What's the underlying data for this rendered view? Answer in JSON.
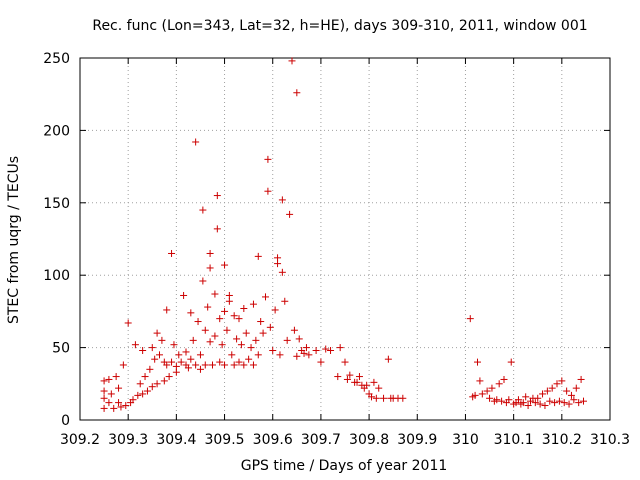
{
  "chart_data": {
    "type": "scatter",
    "title": "Rec. func (Lon=343, Lat=32, h=HE), days 309-310, 2011, window 001",
    "xlabel": "GPS time / Days of year 2011",
    "ylabel": "STEC from uqrg / TECUs",
    "xlim": [
      309.2,
      310.3
    ],
    "ylim": [
      0,
      250
    ],
    "xticks": [
      309.2,
      309.3,
      309.4,
      309.5,
      309.6,
      309.7,
      309.8,
      309.9,
      310,
      310.1,
      310.2,
      310.3
    ],
    "xtick_labels": [
      "309.2",
      "309.3",
      "309.4",
      "309.5",
      "309.6",
      "309.7",
      "309.8",
      "309.9",
      "310",
      "310.1",
      "310.2",
      "310.3"
    ],
    "yticks": [
      0,
      50,
      100,
      150,
      200,
      250
    ],
    "ytick_labels": [
      "0",
      "50",
      "100",
      "150",
      "200",
      "250"
    ],
    "grid": true,
    "marker": "+",
    "color": "#cc0000",
    "series": [
      {
        "name": "STEC",
        "points": [
          [
            309.25,
            27
          ],
          [
            309.25,
            20
          ],
          [
            309.25,
            15
          ],
          [
            309.25,
            8
          ],
          [
            309.26,
            28
          ],
          [
            309.26,
            12
          ],
          [
            309.265,
            18
          ],
          [
            309.27,
            8
          ],
          [
            309.275,
            30
          ],
          [
            309.28,
            22
          ],
          [
            309.28,
            12
          ],
          [
            309.285,
            9
          ],
          [
            309.29,
            38
          ],
          [
            309.295,
            10
          ],
          [
            309.3,
            67
          ],
          [
            309.305,
            12
          ],
          [
            309.31,
            14
          ],
          [
            309.315,
            52
          ],
          [
            309.32,
            17
          ],
          [
            309.325,
            25
          ],
          [
            309.33,
            48
          ],
          [
            309.33,
            18
          ],
          [
            309.335,
            30
          ],
          [
            309.34,
            20
          ],
          [
            309.345,
            35
          ],
          [
            309.35,
            50
          ],
          [
            309.35,
            23
          ],
          [
            309.355,
            42
          ],
          [
            309.36,
            60
          ],
          [
            309.36,
            25
          ],
          [
            309.365,
            45
          ],
          [
            309.37,
            55
          ],
          [
            309.375,
            40
          ],
          [
            309.375,
            27
          ],
          [
            309.38,
            76
          ],
          [
            309.38,
            38
          ],
          [
            309.385,
            30
          ],
          [
            309.39,
            115
          ],
          [
            309.39,
            40
          ],
          [
            309.395,
            52
          ],
          [
            309.4,
            37
          ],
          [
            309.4,
            33
          ],
          [
            309.405,
            45
          ],
          [
            309.41,
            40
          ],
          [
            309.415,
            86
          ],
          [
            309.42,
            38
          ],
          [
            309.42,
            47
          ],
          [
            309.425,
            36
          ],
          [
            309.43,
            74
          ],
          [
            309.43,
            42
          ],
          [
            309.435,
            55
          ],
          [
            309.44,
            192
          ],
          [
            309.44,
            38
          ],
          [
            309.445,
            68
          ],
          [
            309.45,
            35
          ],
          [
            309.45,
            45
          ],
          [
            309.455,
            145
          ],
          [
            309.455,
            96
          ],
          [
            309.46,
            62
          ],
          [
            309.46,
            38
          ],
          [
            309.465,
            78
          ],
          [
            309.47,
            115
          ],
          [
            309.47,
            105
          ],
          [
            309.47,
            54
          ],
          [
            309.475,
            38
          ],
          [
            309.48,
            87
          ],
          [
            309.48,
            58
          ],
          [
            309.485,
            155
          ],
          [
            309.485,
            132
          ],
          [
            309.49,
            70
          ],
          [
            309.49,
            40
          ],
          [
            309.495,
            52
          ],
          [
            309.5,
            107
          ],
          [
            309.5,
            75
          ],
          [
            309.5,
            38
          ],
          [
            309.505,
            62
          ],
          [
            309.51,
            86
          ],
          [
            309.51,
            82
          ],
          [
            309.515,
            45
          ],
          [
            309.52,
            72
          ],
          [
            309.52,
            38
          ],
          [
            309.525,
            56
          ],
          [
            309.53,
            70
          ],
          [
            309.53,
            40
          ],
          [
            309.535,
            52
          ],
          [
            309.54,
            77
          ],
          [
            309.54,
            38
          ],
          [
            309.545,
            60
          ],
          [
            309.55,
            42
          ],
          [
            309.555,
            50
          ],
          [
            309.56,
            80
          ],
          [
            309.56,
            38
          ],
          [
            309.565,
            55
          ],
          [
            309.57,
            113
          ],
          [
            309.57,
            45
          ],
          [
            309.575,
            68
          ],
          [
            309.58,
            60
          ],
          [
            309.585,
            85
          ],
          [
            309.59,
            180
          ],
          [
            309.59,
            158
          ],
          [
            309.595,
            64
          ],
          [
            309.6,
            48
          ],
          [
            309.605,
            76
          ],
          [
            309.61,
            112
          ],
          [
            309.61,
            108
          ],
          [
            309.615,
            45
          ],
          [
            309.62,
            152
          ],
          [
            309.62,
            102
          ],
          [
            309.625,
            82
          ],
          [
            309.63,
            55
          ],
          [
            309.635,
            142
          ],
          [
            309.64,
            248
          ],
          [
            309.645,
            62
          ],
          [
            309.65,
            226
          ],
          [
            309.65,
            44
          ],
          [
            309.655,
            56
          ],
          [
            309.66,
            48
          ],
          [
            309.665,
            46
          ],
          [
            309.67,
            50
          ],
          [
            309.675,
            45
          ],
          [
            309.69,
            48
          ],
          [
            309.7,
            40
          ],
          [
            309.71,
            49
          ],
          [
            309.72,
            48
          ],
          [
            309.735,
            30
          ],
          [
            309.74,
            50
          ],
          [
            309.75,
            40
          ],
          [
            309.755,
            28
          ],
          [
            309.76,
            31
          ],
          [
            309.77,
            26
          ],
          [
            309.775,
            26
          ],
          [
            309.78,
            30
          ],
          [
            309.785,
            24
          ],
          [
            309.79,
            22
          ],
          [
            309.795,
            24
          ],
          [
            309.8,
            18
          ],
          [
            309.805,
            16
          ],
          [
            309.81,
            26
          ],
          [
            309.815,
            15
          ],
          [
            309.82,
            22
          ],
          [
            309.83,
            15
          ],
          [
            309.84,
            42
          ],
          [
            309.845,
            15
          ],
          [
            309.85,
            15
          ],
          [
            309.86,
            15
          ],
          [
            309.87,
            15
          ],
          [
            310.01,
            70
          ],
          [
            310.015,
            16
          ],
          [
            310.02,
            17
          ],
          [
            310.025,
            40
          ],
          [
            310.03,
            27
          ],
          [
            310.035,
            18
          ],
          [
            310.045,
            20
          ],
          [
            310.05,
            15
          ],
          [
            310.055,
            22
          ],
          [
            310.06,
            13
          ],
          [
            310.065,
            14
          ],
          [
            310.07,
            25
          ],
          [
            310.075,
            13
          ],
          [
            310.08,
            28
          ],
          [
            310.085,
            12
          ],
          [
            310.09,
            14
          ],
          [
            310.095,
            40
          ],
          [
            310.1,
            11
          ],
          [
            310.105,
            12
          ],
          [
            310.11,
            14
          ],
          [
            310.115,
            11
          ],
          [
            310.12,
            12
          ],
          [
            310.125,
            16
          ],
          [
            310.13,
            10
          ],
          [
            310.135,
            13
          ],
          [
            310.14,
            15
          ],
          [
            310.145,
            12
          ],
          [
            310.15,
            15
          ],
          [
            310.155,
            11
          ],
          [
            310.16,
            18
          ],
          [
            310.165,
            10
          ],
          [
            310.17,
            20
          ],
          [
            310.175,
            13
          ],
          [
            310.18,
            22
          ],
          [
            310.185,
            12
          ],
          [
            310.19,
            25
          ],
          [
            310.195,
            13
          ],
          [
            310.2,
            27
          ],
          [
            310.205,
            12
          ],
          [
            310.21,
            20
          ],
          [
            310.215,
            11
          ],
          [
            310.22,
            17
          ],
          [
            310.225,
            14
          ],
          [
            310.23,
            22
          ],
          [
            310.235,
            12
          ],
          [
            310.24,
            28
          ],
          [
            310.245,
            13
          ]
        ]
      }
    ]
  }
}
